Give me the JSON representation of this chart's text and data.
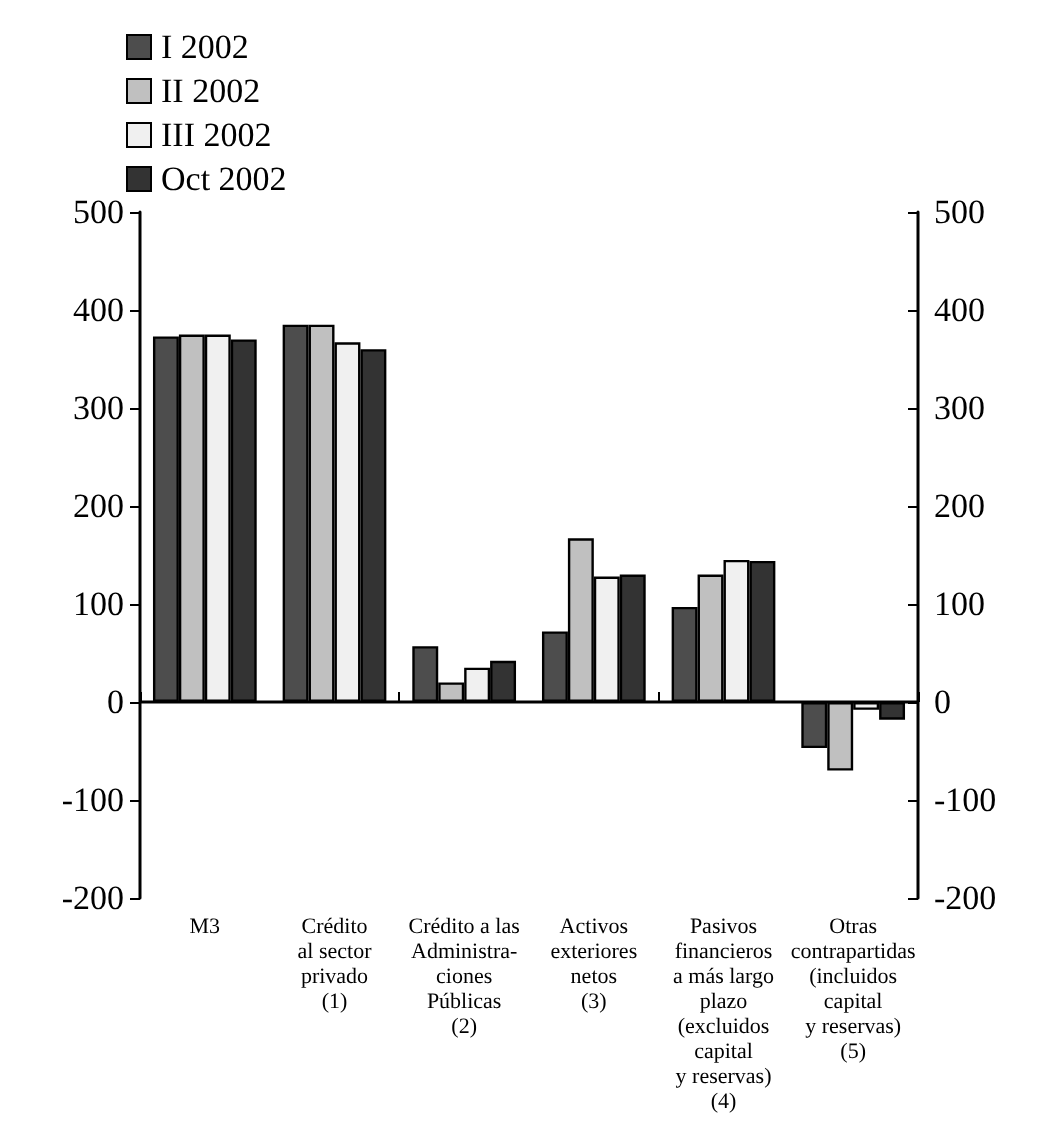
{
  "chart_data": {
    "type": "bar",
    "categories": [
      "M3",
      "Crédito\nal sector\nprivado\n(1)",
      "Crédito a las\nAdministra-\nciones\nPúblicas\n(2)",
      "Activos\nexteriores\nnetos\n(3)",
      "Pasivos\nfinancieros\na más largo\nplazo\n(excluidos\ncapital\ny reservas)\n(4)",
      "Otras\ncontrapartidas\n(incluidos\ncapital\ny reservas)\n(5)"
    ],
    "series": [
      {
        "name": "I 2002",
        "color": "#4d4d4d",
        "values": [
          373,
          385,
          57,
          72,
          97,
          -47
        ]
      },
      {
        "name": "II 2002",
        "color": "#c0c0c0",
        "values": [
          375,
          385,
          20,
          167,
          130,
          -70
        ]
      },
      {
        "name": "III 2002",
        "color": "#f0f0f0",
        "values": [
          375,
          367,
          35,
          128,
          145,
          -8
        ]
      },
      {
        "name": "Oct 2002",
        "color": "#333333",
        "values": [
          370,
          360,
          42,
          130,
          144,
          -18
        ]
      }
    ],
    "ylim": [
      -200,
      500
    ],
    "yticks": [
      -200,
      -100,
      0,
      100,
      200,
      300,
      400,
      500
    ],
    "y2lim": [
      -200,
      500
    ],
    "y2ticks": [
      -200,
      -100,
      0,
      100,
      200,
      300,
      400,
      500
    ],
    "grid": false,
    "ref_lines": [
      {
        "axis": "y",
        "value": 0,
        "color": "#000000",
        "line_style": "solid"
      }
    ],
    "legend": "top left"
  }
}
